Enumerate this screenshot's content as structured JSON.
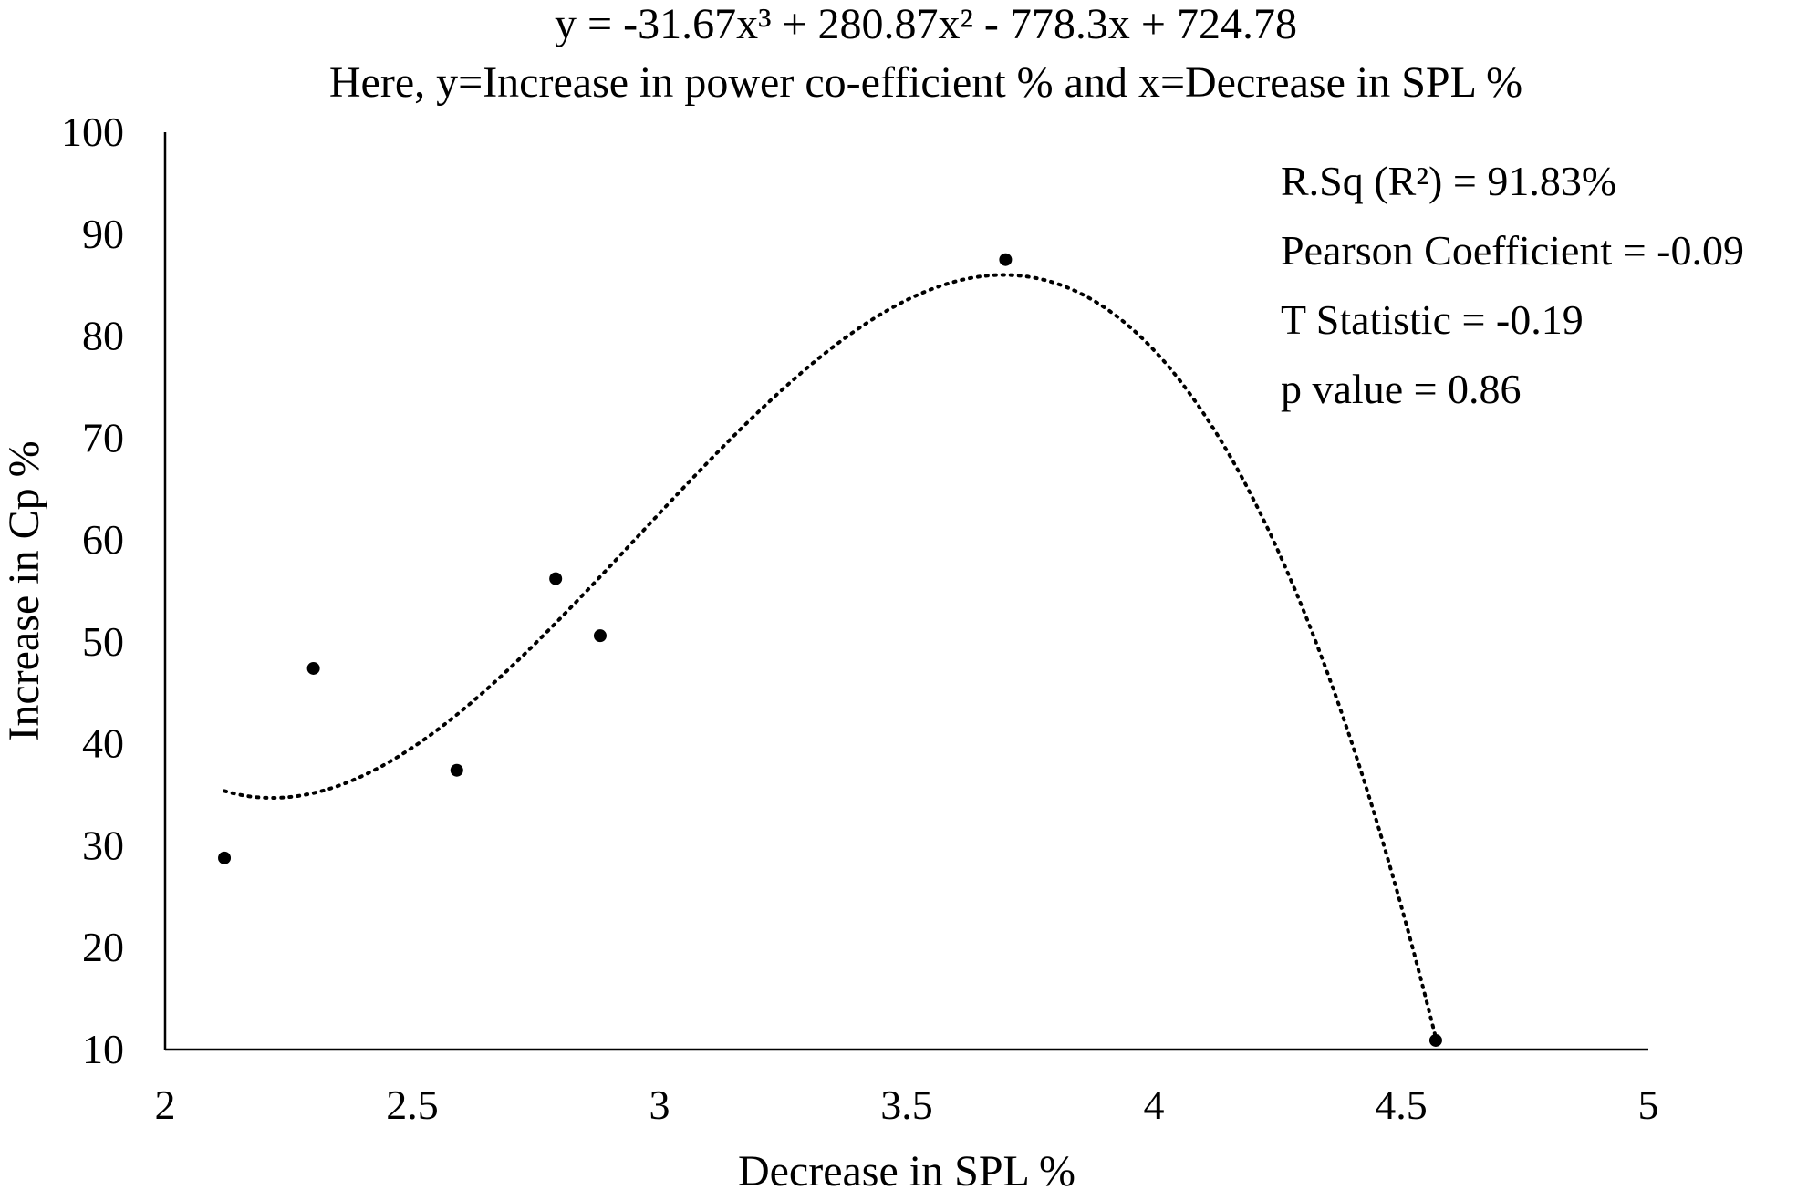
{
  "chart_data": {
    "type": "scatter",
    "title": "y = -31.67x³ + 280.87x² - 778.3x + 724.78",
    "subtitle": "Here, y=Increase in power co-efficient % and x=Decrease in SPL %",
    "xlabel": "Decrease in SPL %",
    "ylabel": "Increase in Cp %",
    "xlim": [
      2,
      5
    ],
    "ylim": [
      10,
      100
    ],
    "x_ticks": [
      "2",
      "2.5",
      "3",
      "3.5",
      "4",
      "4.5",
      "5"
    ],
    "y_ticks": [
      "10",
      "20",
      "30",
      "40",
      "50",
      "60",
      "70",
      "80",
      "90",
      "100"
    ],
    "grid": false,
    "points": [
      {
        "x": 2.12,
        "y": 28.8
      },
      {
        "x": 2.3,
        "y": 47.4
      },
      {
        "x": 2.59,
        "y": 37.4
      },
      {
        "x": 2.79,
        "y": 56.2
      },
      {
        "x": 2.88,
        "y": 50.6
      },
      {
        "x": 3.7,
        "y": 87.5
      },
      {
        "x": 4.57,
        "y": 10.9
      }
    ],
    "trendline": {
      "type": "polynomial",
      "degree": 3,
      "coefficients": [
        -31.67,
        280.87,
        -778.3,
        724.78
      ],
      "x_range": [
        2.12,
        4.57
      ],
      "style": "dotted"
    },
    "annotations": [
      "R.Sq (R²) = 91.83%",
      "Pearson Coefficient = -0.09",
      "T Statistic = -0.19",
      "p value = 0.86"
    ]
  }
}
